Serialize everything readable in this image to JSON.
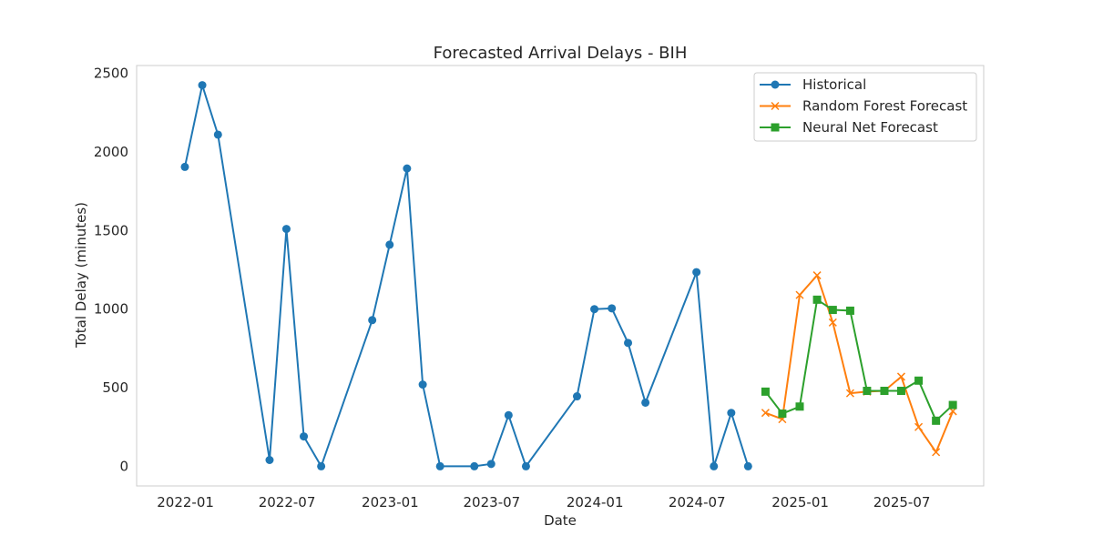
{
  "chart_data": {
    "type": "line",
    "title": "Forecasted Arrival Delays - BIH",
    "xlabel": "Date",
    "ylabel": "Total Delay (minutes)",
    "x_ticks": [
      "2022-01",
      "2022-07",
      "2023-01",
      "2023-07",
      "2024-01",
      "2024-07",
      "2025-01",
      "2025-07"
    ],
    "y_ticks": [
      0,
      500,
      1000,
      1500,
      2000,
      2500
    ],
    "xlim": [
      "2021-10-06",
      "2025-11-24"
    ],
    "ylim": [
      -125,
      2550
    ],
    "grid": false,
    "legend_position": "top-right",
    "series": [
      {
        "name": "Historical",
        "color": "#1f77b4",
        "marker": "circle",
        "points": [
          {
            "x": "2021-12-31",
            "y": 1905
          },
          {
            "x": "2022-01-31",
            "y": 2425
          },
          {
            "x": "2022-02-28",
            "y": 2110
          },
          {
            "x": "2022-05-31",
            "y": 40
          },
          {
            "x": "2022-06-30",
            "y": 1510
          },
          {
            "x": "2022-07-31",
            "y": 190
          },
          {
            "x": "2022-08-31",
            "y": 0
          },
          {
            "x": "2022-11-30",
            "y": 930
          },
          {
            "x": "2022-12-31",
            "y": 1410
          },
          {
            "x": "2023-01-31",
            "y": 1895
          },
          {
            "x": "2023-02-28",
            "y": 520
          },
          {
            "x": "2023-03-31",
            "y": 0
          },
          {
            "x": "2023-05-31",
            "y": 0
          },
          {
            "x": "2023-06-30",
            "y": 15
          },
          {
            "x": "2023-07-31",
            "y": 325
          },
          {
            "x": "2023-08-31",
            "y": 0
          },
          {
            "x": "2023-11-30",
            "y": 445
          },
          {
            "x": "2023-12-31",
            "y": 1000
          },
          {
            "x": "2024-01-31",
            "y": 1005
          },
          {
            "x": "2024-02-29",
            "y": 785
          },
          {
            "x": "2024-03-31",
            "y": 405
          },
          {
            "x": "2024-06-30",
            "y": 1235
          },
          {
            "x": "2024-07-31",
            "y": 0
          },
          {
            "x": "2024-08-31",
            "y": 340
          },
          {
            "x": "2024-09-30",
            "y": 0
          }
        ]
      },
      {
        "name": "Random Forest Forecast",
        "color": "#ff7f0e",
        "marker": "x",
        "points": [
          {
            "x": "2024-10-31",
            "y": 340
          },
          {
            "x": "2024-11-30",
            "y": 300
          },
          {
            "x": "2024-12-31",
            "y": 1090
          },
          {
            "x": "2025-01-31",
            "y": 1215
          },
          {
            "x": "2025-02-28",
            "y": 915
          },
          {
            "x": "2025-03-31",
            "y": 465
          },
          {
            "x": "2025-04-30",
            "y": 475
          },
          {
            "x": "2025-05-31",
            "y": 480
          },
          {
            "x": "2025-06-30",
            "y": 570
          },
          {
            "x": "2025-07-31",
            "y": 250
          },
          {
            "x": "2025-08-31",
            "y": 90
          },
          {
            "x": "2025-09-30",
            "y": 350
          }
        ]
      },
      {
        "name": "Neural Net Forecast",
        "color": "#2ca02c",
        "marker": "square",
        "points": [
          {
            "x": "2024-10-31",
            "y": 475
          },
          {
            "x": "2024-11-30",
            "y": 335
          },
          {
            "x": "2024-12-31",
            "y": 380
          },
          {
            "x": "2025-01-31",
            "y": 1060
          },
          {
            "x": "2025-02-28",
            "y": 995
          },
          {
            "x": "2025-03-31",
            "y": 990
          },
          {
            "x": "2025-04-30",
            "y": 480
          },
          {
            "x": "2025-05-31",
            "y": 480
          },
          {
            "x": "2025-06-30",
            "y": 480
          },
          {
            "x": "2025-07-31",
            "y": 545
          },
          {
            "x": "2025-08-31",
            "y": 290
          },
          {
            "x": "2025-09-30",
            "y": 390
          }
        ]
      }
    ]
  }
}
